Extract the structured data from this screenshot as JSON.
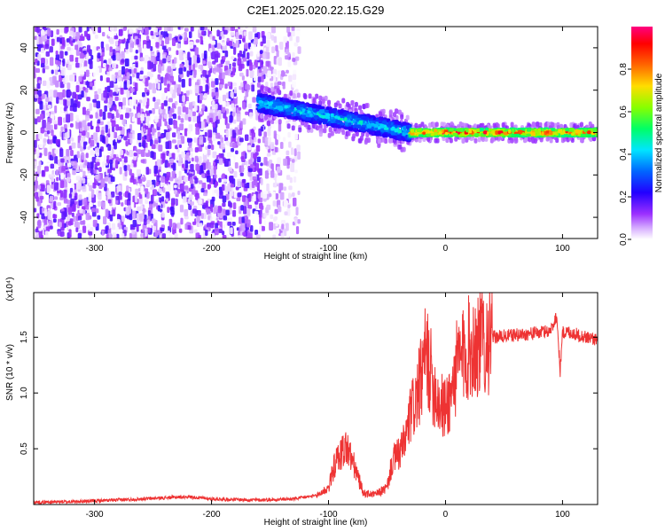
{
  "title": "C2E1.2025.020.22.15.G29",
  "chart_data": [
    {
      "type": "heatmap",
      "title": "C2E1.2025.020.22.15.G29",
      "xlabel": "Height of straight line (km)",
      "ylabel": "Frequency (Hz)",
      "xlim": [
        -352,
        130
      ],
      "ylim": [
        -50,
        50
      ],
      "x_ticks": [
        -300,
        -200,
        -100,
        0,
        100
      ],
      "y_ticks": [
        -40,
        -20,
        0,
        20,
        40
      ],
      "x_tick_labels": [
        "-300",
        "-200",
        "-100",
        "0",
        "100"
      ],
      "y_tick_labels": [
        "-40",
        "-20",
        "0",
        "20",
        "40"
      ],
      "colorbar": {
        "label": "Normalized spectral amplitude",
        "range": [
          0,
          1
        ],
        "ticks": [
          0.0,
          0.2,
          0.4,
          0.6,
          0.8
        ],
        "tick_labels": [
          "0.0",
          "0.2",
          "0.4",
          "0.6",
          "0.8"
        ],
        "colormap": [
          "#ffffff",
          "#9b30ff",
          "#0000ff",
          "#00ccff",
          "#00ff66",
          "#aaff00",
          "#ffcc00",
          "#ff6600",
          "#ff0000",
          "#ff0080"
        ]
      },
      "regions": [
        {
          "x_range": [
            -352,
            -155
          ],
          "freq_range": [
            -50,
            50
          ],
          "amplitude": [
            0.0,
            0.2
          ],
          "description": "scattered noise"
        },
        {
          "x_range": [
            -155,
            -125
          ],
          "freq_range": [
            -50,
            50
          ],
          "amplitude": [
            0.0,
            0.1
          ],
          "description": "faint scattered noise"
        },
        {
          "x_range": [
            -160,
            -30
          ],
          "freq_center": [
            14,
            0
          ],
          "freq_width": 8,
          "amplitude": [
            0.2,
            0.5
          ]
        },
        {
          "x_range": [
            -30,
            130
          ],
          "freq_center": [
            0,
            0
          ],
          "freq_width": 3,
          "amplitude": [
            0.5,
            1.0
          ]
        }
      ]
    },
    {
      "type": "line",
      "xlabel": "Height of straight line (km)",
      "ylabel": "SNR (10 * v/v)",
      "y_multiplier": "(x10⁴)",
      "xlim": [
        -352,
        130
      ],
      "ylim": [
        0,
        19000
      ],
      "x_ticks": [
        -300,
        -200,
        -100,
        0,
        100
      ],
      "y_ticks": [
        5000,
        10000,
        15000
      ],
      "x_tick_labels": [
        "-300",
        "-200",
        "-100",
        "0",
        "100"
      ],
      "y_tick_labels": [
        "0.5",
        "1.0",
        "1.5"
      ],
      "series": [
        {
          "color": "#ee3333",
          "x": [
            -352,
            -320,
            -280,
            -240,
            -220,
            -200,
            -160,
            -130,
            -110,
            -100,
            -95,
            -90,
            -85,
            -80,
            -75,
            -70,
            -60,
            -50,
            -45,
            -40,
            -35,
            -30,
            -25,
            -20,
            -17,
            -15,
            -10,
            -5,
            0,
            5,
            10,
            20,
            30,
            40,
            50,
            60,
            70,
            80,
            90,
            95,
            98,
            100,
            105,
            110,
            120,
            130
          ],
          "y": [
            200,
            250,
            400,
            600,
            700,
            500,
            400,
            500,
            800,
            1500,
            3500,
            4500,
            5200,
            4000,
            2500,
            1000,
            900,
            1500,
            4000,
            4500,
            5500,
            8000,
            9500,
            11500,
            13500,
            13000,
            10500,
            9000,
            8500,
            10000,
            12500,
            14000,
            14700,
            15000,
            15100,
            15200,
            15300,
            15400,
            15600,
            17000,
            12000,
            15400,
            15500,
            15300,
            15000,
            14800
          ]
        }
      ]
    }
  ]
}
